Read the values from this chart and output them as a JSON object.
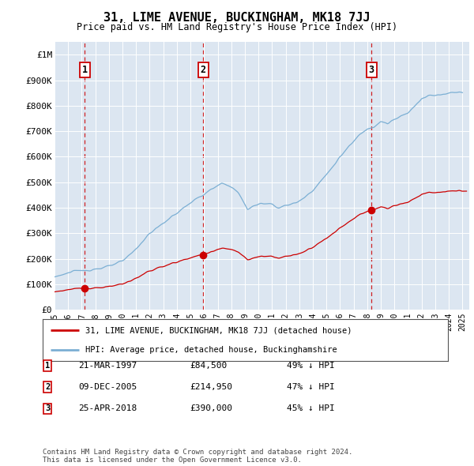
{
  "title": "31, LIME AVENUE, BUCKINGHAM, MK18 7JJ",
  "subtitle": "Price paid vs. HM Land Registry's House Price Index (HPI)",
  "property_label": "31, LIME AVENUE, BUCKINGHAM, MK18 7JJ (detached house)",
  "hpi_label": "HPI: Average price, detached house, Buckinghamshire",
  "footnote": "Contains HM Land Registry data © Crown copyright and database right 2024.\nThis data is licensed under the Open Government Licence v3.0.",
  "sales": [
    {
      "num": 1,
      "date": "21-MAR-1997",
      "price": 84500,
      "year": 1997.22,
      "pct": "49% ↓ HPI"
    },
    {
      "num": 2,
      "date": "09-DEC-2005",
      "price": 214950,
      "year": 2005.94,
      "pct": "47% ↓ HPI"
    },
    {
      "num": 3,
      "date": "25-APR-2018",
      "price": 390000,
      "year": 2018.31,
      "pct": "45% ↓ HPI"
    }
  ],
  "property_color": "#cc0000",
  "hpi_color": "#7bafd4",
  "background_color": "#dce6f1",
  "plot_bg_color": "#dce6f1",
  "ylim": [
    0,
    1050000
  ],
  "yticks": [
    0,
    100000,
    200000,
    300000,
    400000,
    500000,
    600000,
    700000,
    800000,
    900000,
    1000000
  ],
  "ytick_labels": [
    "£0",
    "£100K",
    "£200K",
    "£300K",
    "£400K",
    "£500K",
    "£600K",
    "£700K",
    "£800K",
    "£900K",
    "£1M"
  ],
  "xlim_start": 1995,
  "xlim_end": 2025.5
}
